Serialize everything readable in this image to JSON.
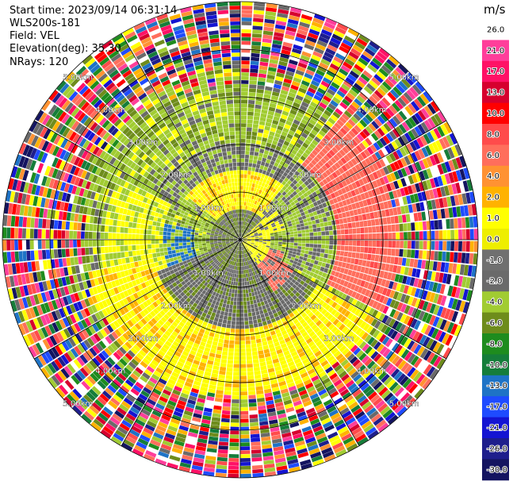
{
  "info": {
    "start_time": "Start time: 2023/09/14 06:31:14",
    "instrument": "WLS200s-181",
    "field": "Field: VEL",
    "elevation": "Elevation(deg): 35.30",
    "nrays": "NRays: 120"
  },
  "colorbar": {
    "unit": "m/s",
    "ticks": [
      "26.0",
      "21.0",
      "17.0",
      "13.0",
      "10.0",
      "8.0",
      "6.0",
      "4.0",
      "2.0",
      "1.0",
      "0.0",
      "-1.0",
      "-2.0",
      "-4.0",
      "-6.0",
      "-8.0",
      "-10.0",
      "-13.0",
      "-17.0",
      "-21.0",
      "-26.0",
      "-30.0"
    ],
    "colors": [
      "#ffffff",
      "#ff3e9a",
      "#ff1166",
      "#d6002e",
      "#ff0000",
      "#ff4b4b",
      "#ff6e5c",
      "#ff9232",
      "#ffb200",
      "#ffff00",
      "#eeee00",
      "#707070",
      "#6a6a6a",
      "#a1cc32",
      "#6e8c1c",
      "#1e8c1e",
      "#157d3a",
      "#1e73c6",
      "#1e4bff",
      "#1414d2",
      "#1e1e8c",
      "#141460"
    ]
  },
  "ppi": {
    "rays": 120,
    "ring_labels": [
      "1.00km",
      "2.00km",
      "3.00km",
      "4.00km",
      "5.00km"
    ]
  }
}
